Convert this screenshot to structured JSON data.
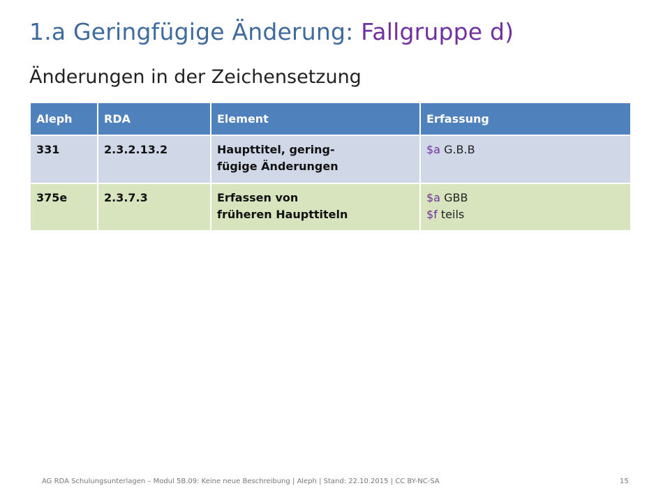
{
  "slide": {
    "title_main": "1.a Geringfügige Änderung: ",
    "title_highlight": "Fallgruppe d)",
    "subtitle": "Änderungen in der Zeichensetzung",
    "colors": {
      "title": "#3e6a9e",
      "title_highlight": "#7030a0",
      "header_bg": "#4f81bd",
      "row1_bg": "#d0d8e8",
      "row2_bg": "#d7e4bd",
      "subfield_code": "#7030a0"
    }
  },
  "table": {
    "headers": [
      "Aleph",
      "RDA",
      "Element",
      "Erfassung"
    ],
    "rows": [
      {
        "aleph": "331",
        "rda": "2.3.2.13.2",
        "element_line1": "Haupttitel, gering-",
        "element_line2": "fügige Änderungen",
        "erfassung": [
          {
            "code": "$a",
            "value": " G.B.B"
          }
        ]
      },
      {
        "aleph": "375e",
        "rda": "2.3.7.3",
        "element_line1": "Erfassen von",
        "element_line2": "früheren Haupttiteln",
        "erfassung": [
          {
            "code": "$a",
            "value": " GBB"
          },
          {
            "code": "$f",
            "value": " teils"
          }
        ]
      }
    ]
  },
  "footer": {
    "text": "AG RDA Schulungsunterlagen – Modul 5B.09: Keine neue Beschreibung | Aleph | Stand: 22.10.2015 | CC BY-NC-SA",
    "page_number": "15"
  }
}
